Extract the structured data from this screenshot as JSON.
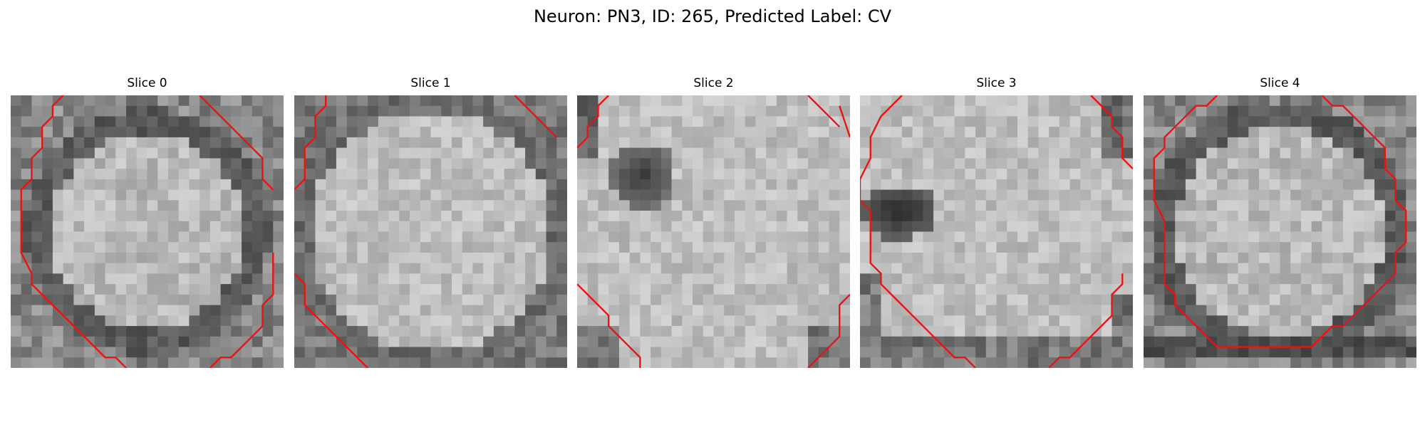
{
  "figure": {
    "title": "Neuron: PN3, ID: 265, Predicted Label: CV"
  },
  "panels": [
    {
      "title": "Slice 0",
      "pattern": "ring",
      "seed": 11
    },
    {
      "title": "Slice 1",
      "pattern": "bright",
      "seed": 23
    },
    {
      "title": "Slice 2",
      "pattern": "dark-spot",
      "seed": 37
    },
    {
      "title": "Slice 3",
      "pattern": "dark-left",
      "seed": 51
    },
    {
      "title": "Slice 4",
      "pattern": "ring-inner",
      "seed": 67
    }
  ],
  "contour_color": "#ee1111",
  "colormap": "gray",
  "grid_size": 26
}
